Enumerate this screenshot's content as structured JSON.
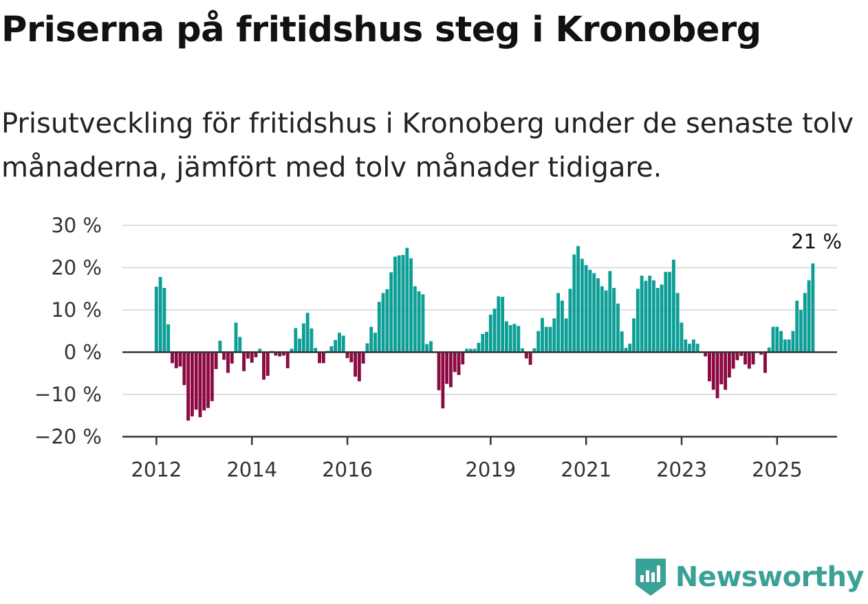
{
  "title": "Priserna på fritidshus steg i Kronoberg",
  "subtitle": "Prisutveckling för fritidshus i Kronoberg under de senaste tolv månaderna, jämfört med tolv månader tidigare.",
  "brand": {
    "name": "Newsworthy",
    "color": "#3aa197"
  },
  "colors": {
    "positive": "#0d9e96",
    "negative": "#8c0a42",
    "grid": "#dddddd",
    "axis": "#333333"
  },
  "chart_data": {
    "type": "bar",
    "x_start": "2012-01",
    "frequency": "monthly",
    "ylim": [
      -20,
      30
    ],
    "yticks": [
      30,
      20,
      10,
      0,
      -10,
      -20
    ],
    "ytick_labels": [
      "30 %",
      "20 %",
      "10 %",
      "0 %",
      "−10 %",
      "−20 %"
    ],
    "xticks": [
      "2012",
      "2014",
      "2016",
      "2019",
      "2021",
      "2023",
      "2025"
    ],
    "grid": true,
    "last_label": "21 %",
    "values": [
      15.5,
      17.8,
      15.2,
      6.6,
      -2.6,
      -3.8,
      -3.4,
      -7.8,
      -16.2,
      -15.2,
      -13.6,
      -15.4,
      -13.8,
      -13.2,
      -11.6,
      -4.0,
      2.7,
      -1.8,
      -4.9,
      -2.7,
      7.0,
      3.6,
      -4.5,
      -1.5,
      -2.5,
      -1.2,
      0.8,
      -6.5,
      -5.6,
      0.3,
      -0.8,
      -1.0,
      -0.8,
      -3.8,
      0.8,
      5.7,
      3.2,
      6.8,
      9.3,
      5.6,
      1.0,
      -2.6,
      -2.6,
      0.3,
      1.4,
      2.9,
      4.6,
      3.9,
      -1.4,
      -2.4,
      -5.8,
      -6.9,
      -2.7,
      2.1,
      6.0,
      4.6,
      11.9,
      14.0,
      14.9,
      18.9,
      22.6,
      22.9,
      23.0,
      24.7,
      22.2,
      15.6,
      14.4,
      13.7,
      1.9,
      2.6,
      0.0,
      -9.0,
      -13.3,
      -7.5,
      -8.3,
      -4.7,
      -5.4,
      -2.9,
      0.8,
      0.8,
      0.8,
      2.2,
      4.3,
      4.8,
      8.9,
      10.3,
      13.2,
      13.1,
      7.3,
      6.4,
      6.7,
      6.2,
      0.9,
      -1.5,
      -3.0,
      0.9,
      5.0,
      8.1,
      6.0,
      6.0,
      8.0,
      14.0,
      12.2,
      8.0,
      15.0,
      23.1,
      25.1,
      22.1,
      20.6,
      19.5,
      18.7,
      17.5,
      15.6,
      14.6,
      19.2,
      15.2,
      11.5,
      4.9,
      1.0,
      2.0,
      8.0,
      15.0,
      18.1,
      16.9,
      18.1,
      17.0,
      15.2,
      16.0,
      19.0,
      19.0,
      21.9,
      14.0,
      7.0,
      3.0,
      2.0,
      3.0,
      2.0,
      0.0,
      -1.0,
      -6.9,
      -8.9,
      -10.9,
      -7.6,
      -8.9,
      -6.0,
      -3.9,
      -1.9,
      -0.9,
      -2.9,
      -3.9,
      -2.9,
      0.0,
      -0.6,
      -4.9,
      1.1,
      6.0,
      6.0,
      5.0,
      3.0,
      3.0,
      5.0,
      12.2,
      10.0,
      14.0,
      17.0,
      21.0
    ]
  }
}
